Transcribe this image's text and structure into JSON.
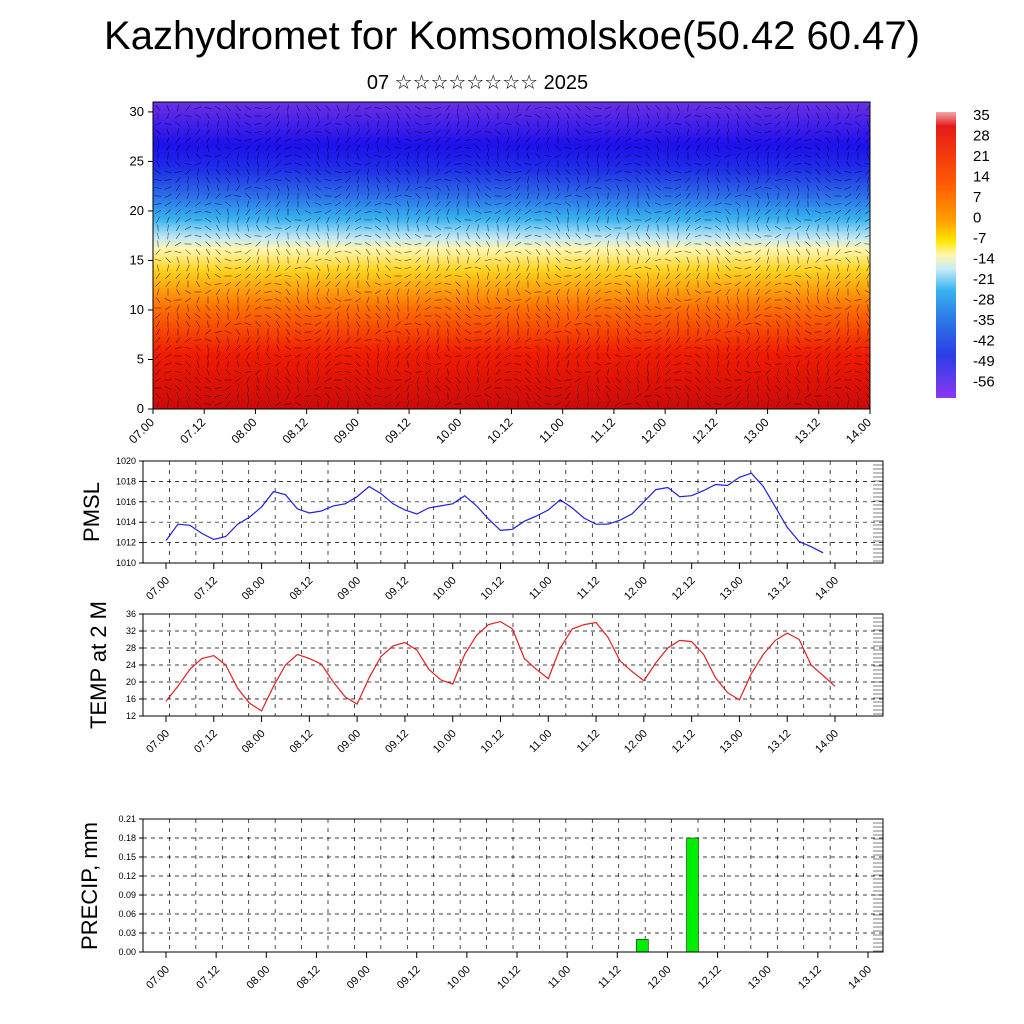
{
  "title": "Kazhydromet for Komsomolskoe(50.42 60.47)",
  "subtitle": "07 ☆☆☆☆☆☆☆☆ 2025",
  "colors": {
    "pmsl_line": "#1f1fe0",
    "temp_line": "#e01f1f",
    "precip_bar": "#00ee00"
  },
  "chart_data": [
    {
      "type": "heatmap",
      "name_key": "cross_section",
      "x_tick_labels": [
        "07.00",
        "07.12",
        "08.00",
        "08.12",
        "09.00",
        "09.12",
        "10.00",
        "10.12",
        "11.00",
        "11.12",
        "12.00",
        "12.12",
        "13.00",
        "13.12",
        "14.00"
      ],
      "ylim": [
        0,
        31
      ],
      "y_ticks": [
        0,
        5,
        10,
        15,
        20,
        25,
        30
      ],
      "colorbar_labels": [
        "35",
        "28",
        "21",
        "14",
        "7",
        "0",
        "-7",
        "-14",
        "-21",
        "-28",
        "-35",
        "-42",
        "-49",
        "-56"
      ],
      "overlay": "wind vectors (arrows)"
    },
    {
      "type": "line",
      "name_key": "pmsl",
      "ylabel": "PMSL",
      "ylim": [
        1010,
        1020
      ],
      "y_ticks": [
        1010,
        1012,
        1014,
        1016,
        1018,
        1020
      ],
      "x_tick_labels": [
        "07.00",
        "07.12",
        "08.00",
        "08.12",
        "09.00",
        "09.12",
        "10.00",
        "10.12",
        "11.00",
        "11.12",
        "12.00",
        "12.12",
        "13.00",
        "13.12",
        "14.00"
      ],
      "x": [
        0,
        3,
        6,
        9,
        12,
        15,
        18,
        21,
        24,
        27,
        30,
        33,
        36,
        39,
        42,
        45,
        48,
        51,
        54,
        57,
        60,
        63,
        66,
        69,
        72,
        75,
        78,
        81,
        84,
        87,
        90,
        93,
        96,
        99,
        102,
        105,
        108,
        111,
        114,
        117,
        120,
        123,
        126,
        129,
        132,
        135,
        138,
        141,
        144,
        147,
        150,
        153,
        156,
        159,
        162,
        165
      ],
      "values": [
        1012.2,
        1013.8,
        1013.7,
        1012.9,
        1012.3,
        1012.6,
        1013.8,
        1014.5,
        1015.5,
        1017.0,
        1016.7,
        1015.3,
        1014.9,
        1015.1,
        1015.6,
        1015.8,
        1016.5,
        1017.5,
        1016.8,
        1015.8,
        1015.2,
        1014.8,
        1015.4,
        1015.6,
        1015.8,
        1016.6,
        1015.6,
        1014.3,
        1013.2,
        1013.3,
        1014.1,
        1014.6,
        1015.2,
        1016.2,
        1015.4,
        1014.4,
        1013.8,
        1013.8,
        1014.2,
        1014.8,
        1016.0,
        1017.2,
        1017.4,
        1016.5,
        1016.6,
        1017.1,
        1017.7,
        1017.6,
        1018.4,
        1018.8,
        1017.5,
        1015.5,
        1013.5,
        1012.1,
        1011.6,
        1011.0
      ]
    },
    {
      "type": "line",
      "name_key": "temp",
      "ylabel": "TEMP at 2 M",
      "ylim": [
        12,
        36
      ],
      "y_ticks": [
        12,
        16,
        20,
        24,
        28,
        32,
        36
      ],
      "x_tick_labels": [
        "07.00",
        "07.12",
        "08.00",
        "08.12",
        "09.00",
        "09.12",
        "10.00",
        "10.12",
        "11.00",
        "11.12",
        "12.00",
        "12.12",
        "13.00",
        "13.12",
        "14.00"
      ],
      "x": [
        0,
        3,
        6,
        9,
        12,
        15,
        18,
        21,
        24,
        27,
        30,
        33,
        36,
        39,
        42,
        45,
        48,
        51,
        54,
        57,
        60,
        63,
        66,
        69,
        72,
        75,
        78,
        81,
        84,
        87,
        90,
        93,
        96,
        99,
        102,
        105,
        108,
        111,
        114,
        117,
        120,
        123,
        126,
        129,
        132,
        135,
        138,
        141,
        144,
        147,
        150,
        153,
        156,
        159,
        162,
        165,
        168
      ],
      "values": [
        15.5,
        19.0,
        23.0,
        25.5,
        26.2,
        24.0,
        18.5,
        15.0,
        13.2,
        19.0,
        24.0,
        26.5,
        25.5,
        24.2,
        20.0,
        16.5,
        14.8,
        21.0,
        26.0,
        28.5,
        29.3,
        27.5,
        23.0,
        20.5,
        19.5,
        26.5,
        31.0,
        33.5,
        34.2,
        32.5,
        25.5,
        23.0,
        20.8,
        28.0,
        32.5,
        33.5,
        34.0,
        30.5,
        25.0,
        22.5,
        20.3,
        24.5,
        28.0,
        29.8,
        29.5,
        26.5,
        21.0,
        17.5,
        15.8,
        22.0,
        26.5,
        29.8,
        31.5,
        30.0,
        24.0,
        21.5,
        19.0
      ]
    },
    {
      "type": "bar",
      "name_key": "precip",
      "ylabel": "PRECIP, mm",
      "ylim": [
        0,
        0.21
      ],
      "y_tick_labels": [
        "0.00",
        "0.03",
        "0.06",
        "0.09",
        "0.12",
        "0.15",
        "0.18",
        "0.21"
      ],
      "x_tick_labels": [
        "07.00",
        "07.12",
        "08.00",
        "08.12",
        "09.00",
        "09.12",
        "10.00",
        "10.12",
        "11.00",
        "11.12",
        "12.00",
        "12.12",
        "13.00",
        "13.12",
        "14.00"
      ],
      "x": [
        114,
        126
      ],
      "values": [
        0.02,
        0.18
      ]
    }
  ]
}
